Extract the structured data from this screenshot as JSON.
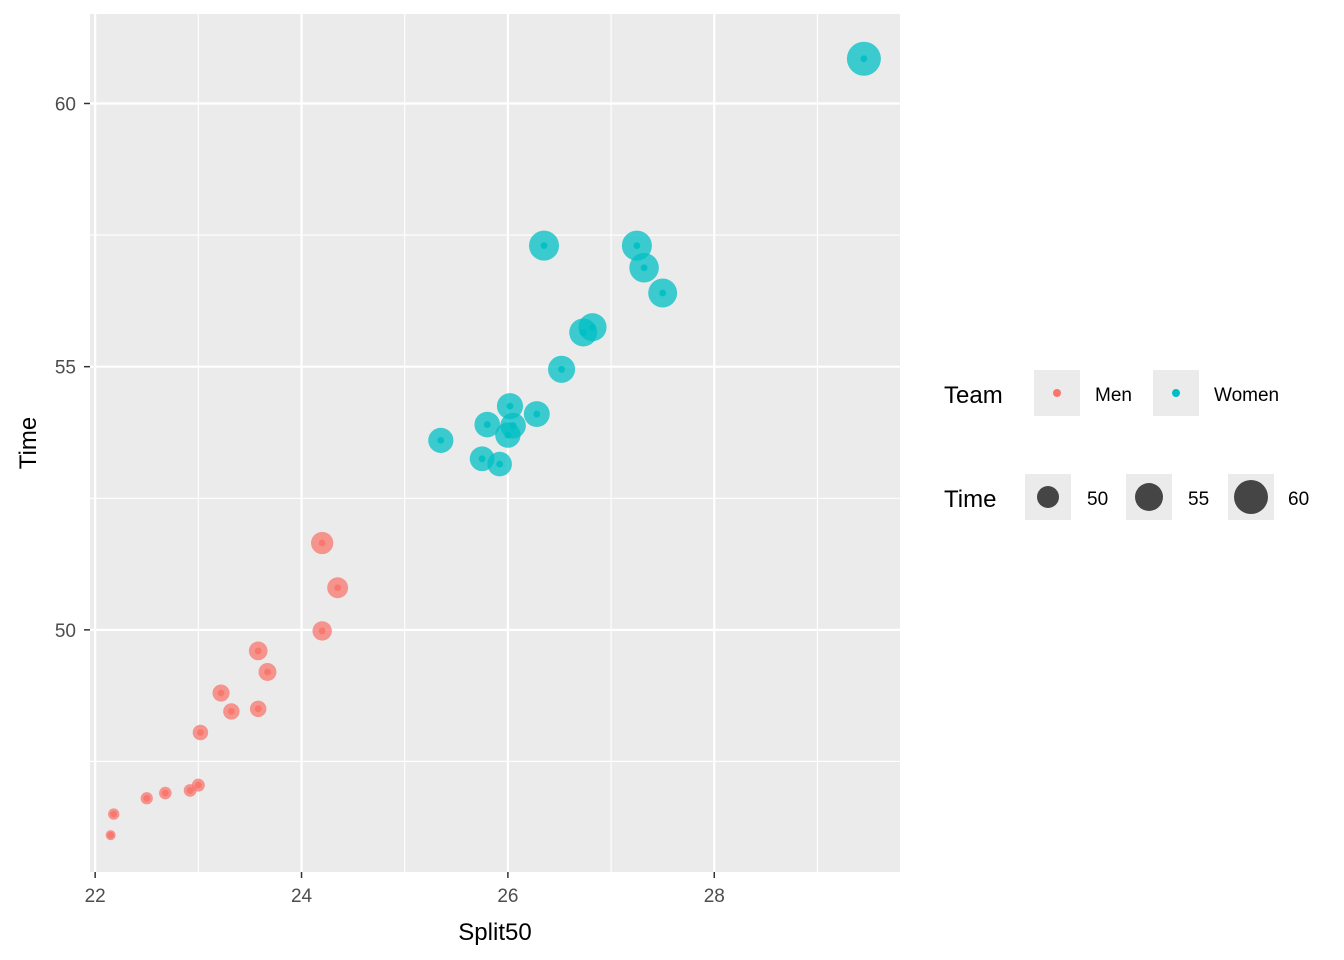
{
  "chart_data": {
    "type": "scatter",
    "xlabel": "Split50",
    "ylabel": "Time",
    "xlim": [
      21.95,
      29.8
    ],
    "ylim": [
      45.4,
      61.7
    ],
    "x_ticks": [
      22,
      24,
      26,
      28
    ],
    "x_tick_labels": [
      "22",
      "24",
      "26",
      "28"
    ],
    "y_ticks": [
      50,
      55,
      60
    ],
    "y_tick_labels": [
      "50",
      "55",
      "60"
    ],
    "grid": true,
    "background_color": "#ebebeb",
    "marker_opacity": 0.75,
    "legend": {
      "placement": "right",
      "color_title": "Team",
      "size_title": "Time",
      "size_breaks": [
        50,
        55,
        60
      ],
      "size_labels": [
        "50",
        "55",
        "60"
      ]
    },
    "series": [
      {
        "name": "Men",
        "color": "#f8766d",
        "points": [
          [
            22.15,
            46.1
          ],
          [
            22.18,
            46.5
          ],
          [
            22.5,
            46.8
          ],
          [
            22.68,
            46.9
          ],
          [
            22.92,
            46.95
          ],
          [
            23.0,
            47.05
          ],
          [
            23.02,
            48.05
          ],
          [
            23.22,
            48.8
          ],
          [
            23.32,
            48.45
          ],
          [
            23.58,
            48.5
          ],
          [
            23.58,
            49.6
          ],
          [
            23.67,
            49.2
          ],
          [
            24.2,
            49.98
          ],
          [
            24.2,
            51.65
          ],
          [
            24.35,
            50.8
          ]
        ]
      },
      {
        "name": "Women",
        "color": "#00bfc4",
        "points": [
          [
            25.35,
            53.6
          ],
          [
            25.75,
            53.25
          ],
          [
            25.8,
            53.9
          ],
          [
            25.92,
            53.15
          ],
          [
            26.0,
            53.7
          ],
          [
            26.02,
            54.25
          ],
          [
            26.05,
            53.88
          ],
          [
            26.28,
            54.1
          ],
          [
            26.35,
            57.3
          ],
          [
            26.52,
            54.95
          ],
          [
            26.73,
            55.65
          ],
          [
            26.82,
            55.75
          ],
          [
            27.25,
            57.3
          ],
          [
            27.32,
            56.88
          ],
          [
            27.5,
            56.4
          ],
          [
            29.45,
            60.85
          ]
        ]
      }
    ]
  }
}
